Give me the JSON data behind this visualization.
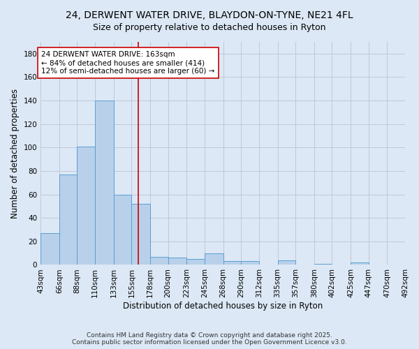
{
  "title_line1": "24, DERWENT WATER DRIVE, BLAYDON-ON-TYNE, NE21 4FL",
  "title_line2": "Size of property relative to detached houses in Ryton",
  "xlabel": "Distribution of detached houses by size in Ryton",
  "ylabel": "Number of detached properties",
  "bar_values": [
    27,
    77,
    101,
    140,
    60,
    52,
    7,
    6,
    5,
    10,
    3,
    3,
    0,
    4,
    0,
    1,
    0,
    2,
    0,
    0
  ],
  "bin_edges": [
    43,
    66,
    88,
    110,
    133,
    155,
    178,
    200,
    223,
    245,
    268,
    290,
    312,
    335,
    357,
    380,
    402,
    425,
    447,
    470,
    492
  ],
  "bin_labels": [
    "43sqm",
    "66sqm",
    "88sqm",
    "110sqm",
    "133sqm",
    "155sqm",
    "178sqm",
    "200sqm",
    "223sqm",
    "245sqm",
    "268sqm",
    "290sqm",
    "312sqm",
    "335sqm",
    "357sqm",
    "380sqm",
    "402sqm",
    "425sqm",
    "447sqm",
    "470sqm",
    "492sqm"
  ],
  "bar_color": "#b8d0ea",
  "bar_edge_color": "#5a9fd4",
  "property_line_x": 163,
  "property_line_color": "#cc0000",
  "annotation_text": "24 DERWENT WATER DRIVE: 163sqm\n← 84% of detached houses are smaller (414)\n12% of semi-detached houses are larger (60) →",
  "annotation_box_color": "#ffffff",
  "annotation_box_edge": "#cc0000",
  "ylim": [
    0,
    190
  ],
  "yticks": [
    0,
    20,
    40,
    60,
    80,
    100,
    120,
    140,
    160,
    180
  ],
  "grid_color": "#c0c8d8",
  "background_color": "#dce8f5",
  "footer_line1": "Contains HM Land Registry data © Crown copyright and database right 2025.",
  "footer_line2": "Contains public sector information licensed under the Open Government Licence v3.0.",
  "title_fontsize": 10,
  "subtitle_fontsize": 9,
  "axis_label_fontsize": 8.5,
  "tick_fontsize": 7.5,
  "annotation_fontsize": 7.5,
  "footer_fontsize": 6.5
}
